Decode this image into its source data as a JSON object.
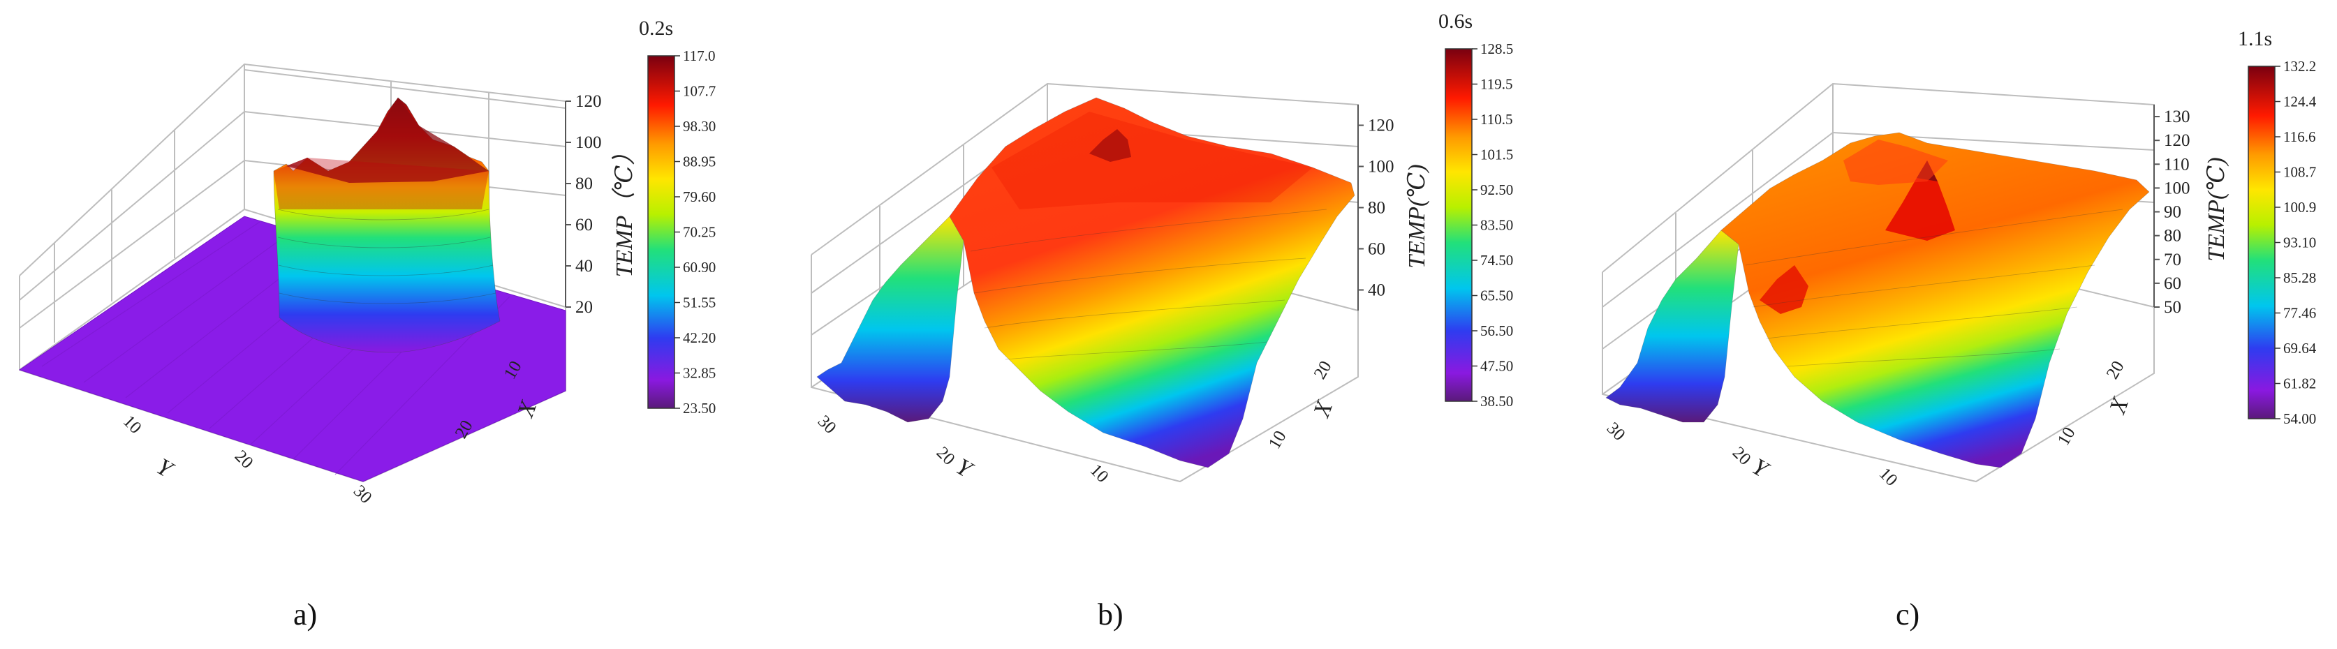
{
  "chart_data": [
    {
      "type": "surface3d",
      "caption": "a)",
      "time_label": "0.2s",
      "zlabel": "TEMP（℃）",
      "ylabel": "Y",
      "xlabel": "X",
      "z_ticks": [
        20,
        40,
        60,
        80,
        100,
        120
      ],
      "y_ticks": [
        "10",
        "20",
        "30"
      ],
      "x_ticks": [
        "10",
        "20"
      ],
      "colorbar_ticks": [
        "117.0",
        "107.7",
        "98.30",
        "88.95",
        "79.60",
        "70.25",
        "60.90",
        "51.55",
        "42.20",
        "32.85",
        "23.50"
      ],
      "colorbar_range": [
        23.5,
        117.0
      ],
      "zlim": [
        20,
        120
      ],
      "grid": true
    },
    {
      "type": "surface3d",
      "caption": "b)",
      "time_label": "0.6s",
      "zlabel": "TEMP(℃)",
      "ylabel": "Y",
      "xlabel": "X",
      "z_ticks": [
        40,
        60,
        80,
        100,
        120
      ],
      "y_ticks": [
        "30",
        "20",
        "10"
      ],
      "x_ticks": [
        "10",
        "20"
      ],
      "colorbar_ticks": [
        "128.5",
        "119.5",
        "110.5",
        "101.5",
        "92.50",
        "83.50",
        "74.50",
        "65.50",
        "56.50",
        "47.50",
        "38.50"
      ],
      "colorbar_range": [
        38.5,
        128.5
      ],
      "zlim": [
        30,
        130
      ],
      "grid": true
    },
    {
      "type": "surface3d",
      "caption": "c)",
      "time_label": "1.1s",
      "zlabel": "TEMP(℃)",
      "ylabel": "Y",
      "xlabel": "X",
      "z_ticks": [
        50,
        60,
        70,
        80,
        90,
        100,
        110,
        120,
        130
      ],
      "y_ticks": [
        "30",
        "20",
        "10"
      ],
      "x_ticks": [
        "10",
        "20"
      ],
      "colorbar_ticks": [
        "132.2",
        "124.4",
        "116.6",
        "108.7",
        "100.9",
        "93.10",
        "85.28",
        "77.46",
        "69.64",
        "61.82",
        "54.00"
      ],
      "colorbar_range": [
        54.0,
        132.2
      ],
      "zlim": [
        50,
        135
      ],
      "grid": true
    }
  ]
}
